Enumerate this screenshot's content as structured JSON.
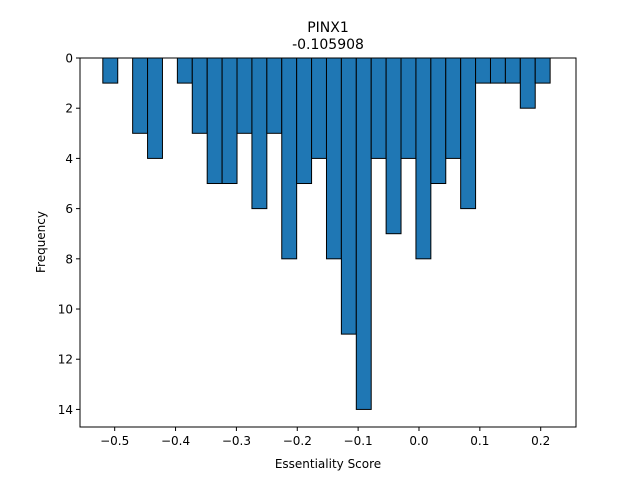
{
  "chart_data": {
    "type": "bar",
    "title": "PINX1",
    "subtitle": "-0.105908",
    "xlabel": "Essentiality Score",
    "ylabel": "Frequency",
    "xlim": [
      -0.557,
      0.258
    ],
    "ylim": [
      0,
      14.7
    ],
    "y_inverted": true,
    "grid": false,
    "bar_color": "#1f77b4",
    "edge_color": "#000000",
    "bin_width": 0.0245,
    "xticks": [
      -0.5,
      -0.4,
      -0.3,
      -0.2,
      -0.1,
      0.0,
      0.1,
      0.2
    ],
    "xtick_labels": [
      "−0.5",
      "−0.4",
      "−0.3",
      "−0.2",
      "−0.1",
      "0.0",
      "0.1",
      "0.2"
    ],
    "yticks": [
      0,
      2,
      4,
      6,
      8,
      10,
      12,
      14
    ],
    "ytick_labels": [
      "0",
      "2",
      "4",
      "6",
      "8",
      "10",
      "12",
      "14"
    ],
    "bins": [
      {
        "left": -0.5195,
        "value": 1
      },
      {
        "left": -0.495,
        "value": 0
      },
      {
        "left": -0.4705,
        "value": 3
      },
      {
        "left": -0.446,
        "value": 4
      },
      {
        "left": -0.4215,
        "value": 0
      },
      {
        "left": -0.397,
        "value": 1
      },
      {
        "left": -0.3725,
        "value": 3
      },
      {
        "left": -0.348,
        "value": 5
      },
      {
        "left": -0.3235,
        "value": 5
      },
      {
        "left": -0.299,
        "value": 3
      },
      {
        "left": -0.2745,
        "value": 6
      },
      {
        "left": -0.25,
        "value": 3
      },
      {
        "left": -0.2255,
        "value": 8
      },
      {
        "left": -0.201,
        "value": 5
      },
      {
        "left": -0.1765,
        "value": 4
      },
      {
        "left": -0.152,
        "value": 8
      },
      {
        "left": -0.1275,
        "value": 11
      },
      {
        "left": -0.103,
        "value": 14
      },
      {
        "left": -0.0785,
        "value": 4
      },
      {
        "left": -0.054,
        "value": 7
      },
      {
        "left": -0.0295,
        "value": 4
      },
      {
        "left": -0.005,
        "value": 8
      },
      {
        "left": 0.0195,
        "value": 5
      },
      {
        "left": 0.044,
        "value": 4
      },
      {
        "left": 0.0685,
        "value": 6
      },
      {
        "left": 0.093,
        "value": 1
      },
      {
        "left": 0.1175,
        "value": 1
      },
      {
        "left": 0.142,
        "value": 1
      },
      {
        "left": 0.1665,
        "value": 2
      },
      {
        "left": 0.191,
        "value": 1
      }
    ]
  }
}
